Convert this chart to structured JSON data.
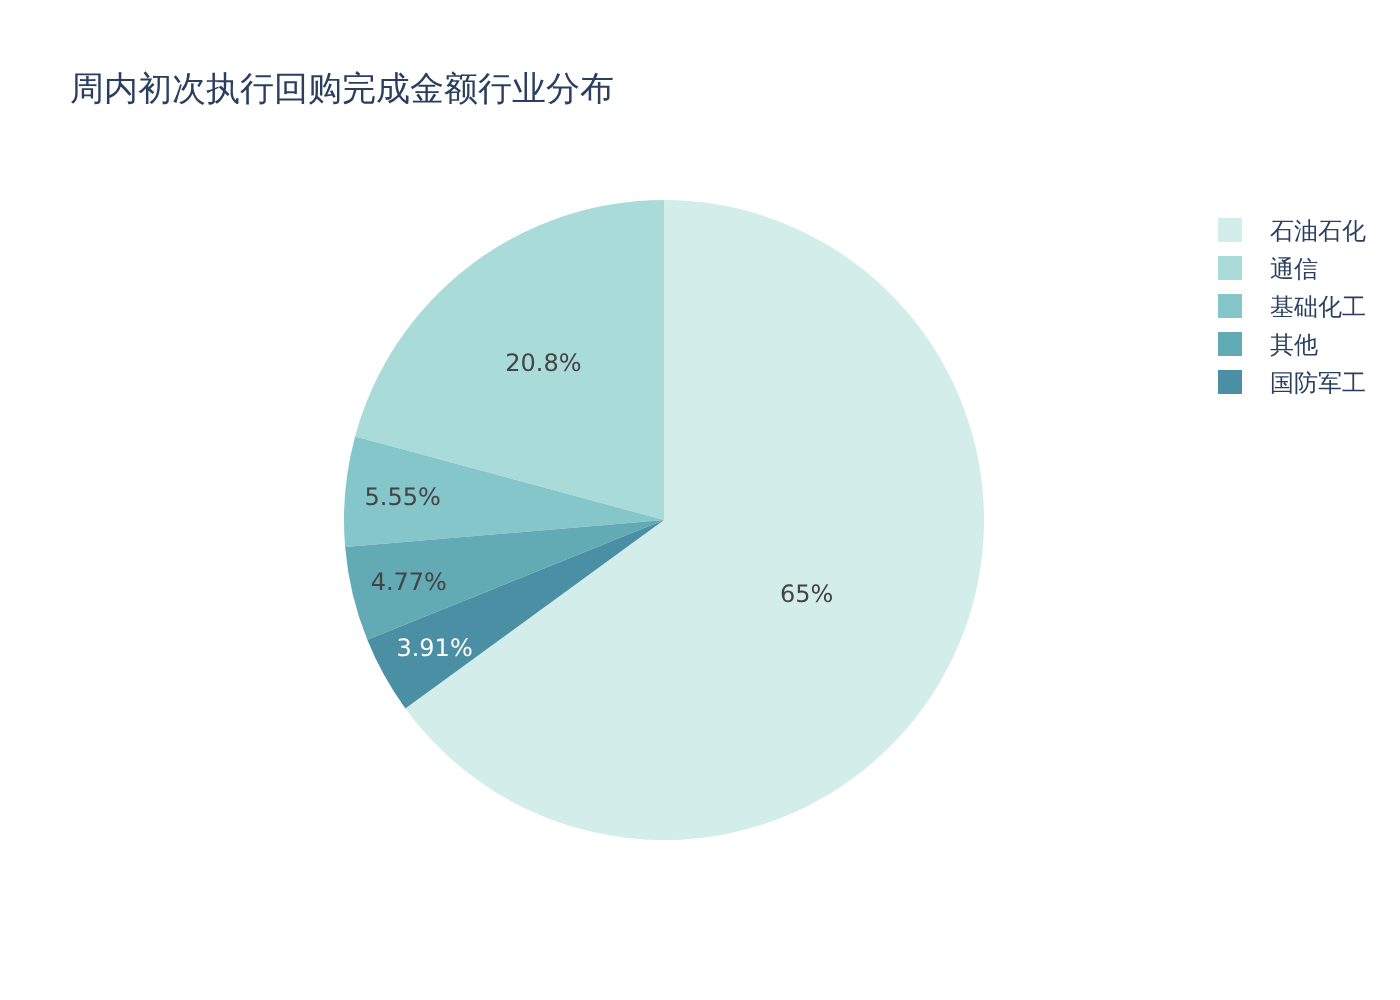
{
  "chart_data": {
    "type": "pie",
    "title": "周内初次执行回购完成金额行业分布",
    "categories": [
      "石油石化",
      "通信",
      "基础化工",
      "其他",
      "国防军工"
    ],
    "values": [
      65,
      20.8,
      5.55,
      4.77,
      3.91
    ],
    "colors": [
      "#d2edea",
      "#a9dbd9",
      "#84c6c9",
      "#62abb5",
      "#4a8fa3"
    ],
    "value_labels": [
      "65%",
      "20.8%",
      "5.55%",
      "4.77%",
      "3.91%"
    ],
    "legend": "top right"
  }
}
